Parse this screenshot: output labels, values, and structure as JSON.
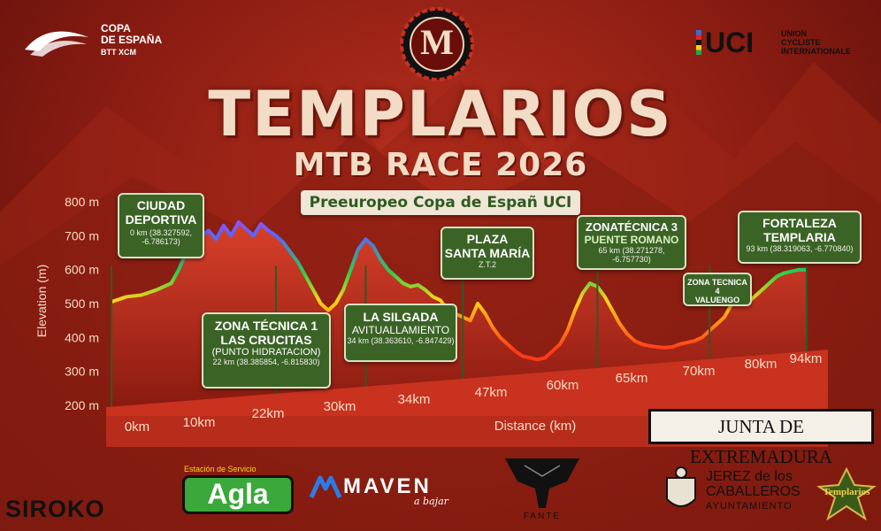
{
  "header": {
    "copa_line1": "COPA",
    "copa_line2": "DE ESPAÑA",
    "copa_line3": "BTT XCM",
    "uci_short": "UCI",
    "uci_line1": "UNION",
    "uci_line2": "CYCLISTE",
    "uci_line3": "INTERNATIONALE",
    "emblem_letter": "M"
  },
  "title": "TEMPLARIOS",
  "subtitle": "MTB RACE 2026",
  "tagline": "Preeuropeo Copa de Españ UCI",
  "chart_data": {
    "type": "area",
    "ylabel": "Elevation (m)",
    "xlabel": "Distance (km)",
    "ylim": [
      200,
      800
    ],
    "yticks": [
      "800 m",
      "700 m",
      "600 m",
      "500 m",
      "400 m",
      "300 m",
      "200 m"
    ],
    "yticks_values": [
      800,
      700,
      600,
      500,
      400,
      300,
      200
    ],
    "xtick_labels": [
      "0km",
      "10km",
      "22km",
      "30km",
      "34km",
      "47km",
      "60km",
      "65km",
      "70km",
      "80km",
      "94km"
    ],
    "xtick_values": [
      0,
      10,
      22,
      30,
      34,
      47,
      60,
      65,
      70,
      80,
      94
    ],
    "profile": [
      [
        0,
        505
      ],
      [
        2,
        520
      ],
      [
        4,
        525
      ],
      [
        6,
        540
      ],
      [
        8,
        560
      ],
      [
        9,
        600
      ],
      [
        10,
        650
      ],
      [
        11,
        680
      ],
      [
        12,
        700
      ],
      [
        13,
        715
      ],
      [
        14,
        690
      ],
      [
        15,
        730
      ],
      [
        16,
        700
      ],
      [
        17,
        740
      ],
      [
        18,
        720
      ],
      [
        19,
        700
      ],
      [
        20,
        735
      ],
      [
        21,
        715
      ],
      [
        22,
        700
      ],
      [
        23,
        680
      ],
      [
        24,
        650
      ],
      [
        25,
        620
      ],
      [
        26,
        580
      ],
      [
        27,
        540
      ],
      [
        28,
        500
      ],
      [
        29,
        480
      ],
      [
        30,
        500
      ],
      [
        31,
        540
      ],
      [
        32,
        600
      ],
      [
        33,
        660
      ],
      [
        34,
        690
      ],
      [
        35,
        670
      ],
      [
        36,
        630
      ],
      [
        37,
        600
      ],
      [
        38,
        580
      ],
      [
        39,
        560
      ],
      [
        40,
        550
      ],
      [
        41,
        555
      ],
      [
        42,
        540
      ],
      [
        43,
        520
      ],
      [
        44,
        510
      ],
      [
        45,
        480
      ],
      [
        46,
        470
      ],
      [
        47,
        460
      ],
      [
        48,
        450
      ],
      [
        49,
        500
      ],
      [
        50,
        470
      ],
      [
        51,
        430
      ],
      [
        52,
        400
      ],
      [
        53,
        380
      ],
      [
        54,
        360
      ],
      [
        55,
        345
      ],
      [
        56,
        340
      ],
      [
        57,
        335
      ],
      [
        58,
        340
      ],
      [
        59,
        360
      ],
      [
        60,
        380
      ],
      [
        61,
        420
      ],
      [
        62,
        480
      ],
      [
        63,
        530
      ],
      [
        64,
        560
      ],
      [
        65,
        550
      ],
      [
        66,
        520
      ],
      [
        67,
        480
      ],
      [
        68,
        440
      ],
      [
        69,
        410
      ],
      [
        70,
        390
      ],
      [
        71,
        380
      ],
      [
        72,
        375
      ],
      [
        73,
        372
      ],
      [
        74,
        370
      ],
      [
        75,
        372
      ],
      [
        76,
        380
      ],
      [
        77,
        385
      ],
      [
        78,
        390
      ],
      [
        79,
        400
      ],
      [
        80,
        420
      ],
      [
        81,
        440
      ],
      [
        82,
        460
      ],
      [
        83,
        500
      ],
      [
        84,
        520
      ],
      [
        85,
        500
      ],
      [
        86,
        520
      ],
      [
        87,
        540
      ],
      [
        88,
        560
      ],
      [
        89,
        580
      ],
      [
        90,
        590
      ],
      [
        91,
        595
      ],
      [
        92,
        600
      ],
      [
        93,
        600
      ]
    ],
    "waypoints": [
      {
        "km": 0,
        "name1": "CIUDAD",
        "name2": "DEPORTIVA",
        "detail": "0 km (38.327592, -6.786173)"
      },
      {
        "km": 22,
        "name1": "ZONA TÉCNICA 1",
        "name2": "LAS CRUCITAS",
        "name3": "(PUNTO HIDRATACION)",
        "detail": "22 km (38.385854, -6.815830)"
      },
      {
        "km": 34,
        "name1": "LA SILGADA",
        "name2": "AVITUALLAMIENTO",
        "detail": "34 km (38.363610, -6.847429)"
      },
      {
        "km": 47,
        "name1": "PLAZA",
        "name2": "SANTA MARÍA",
        "detail": "Z.T.2"
      },
      {
        "km": 65,
        "name1": "ZONATÉCNICA 3",
        "name2": "PUENTE ROMANO",
        "detail": "65 km (38.271278, -6.757730)"
      },
      {
        "km": 80,
        "name1": "ZONA TECNICA 4",
        "name2": "VALUENGO"
      },
      {
        "km": 93,
        "name1": "FORTALEZA",
        "name2": "TEMPLARIA",
        "detail": "93 km (38.319063, -6.770840)"
      }
    ],
    "colors": {
      "fill_top": "#c8321f",
      "fill_bottom": "#8a1a10",
      "line_low": "#ff3a1a",
      "line_mid": "#ffd21a",
      "line_green": "#29d14a",
      "line_high": "#4f6bff",
      "line_peak": "#c23bff"
    }
  },
  "junta": "JUNTA DE EXTREMADURA",
  "sponsors": {
    "siroko": "SIROKO",
    "agla_small": "Estación de Servicio",
    "agla": "Agla",
    "maven": "MAVEN",
    "maven_tag": "a bajar",
    "fante": "FANTE",
    "jerez1": "JEREZ de los",
    "jerez2": "CABALLEROS",
    "jerez3": "AYUNTAMIENTO",
    "templarios_badge": "Templarios"
  }
}
